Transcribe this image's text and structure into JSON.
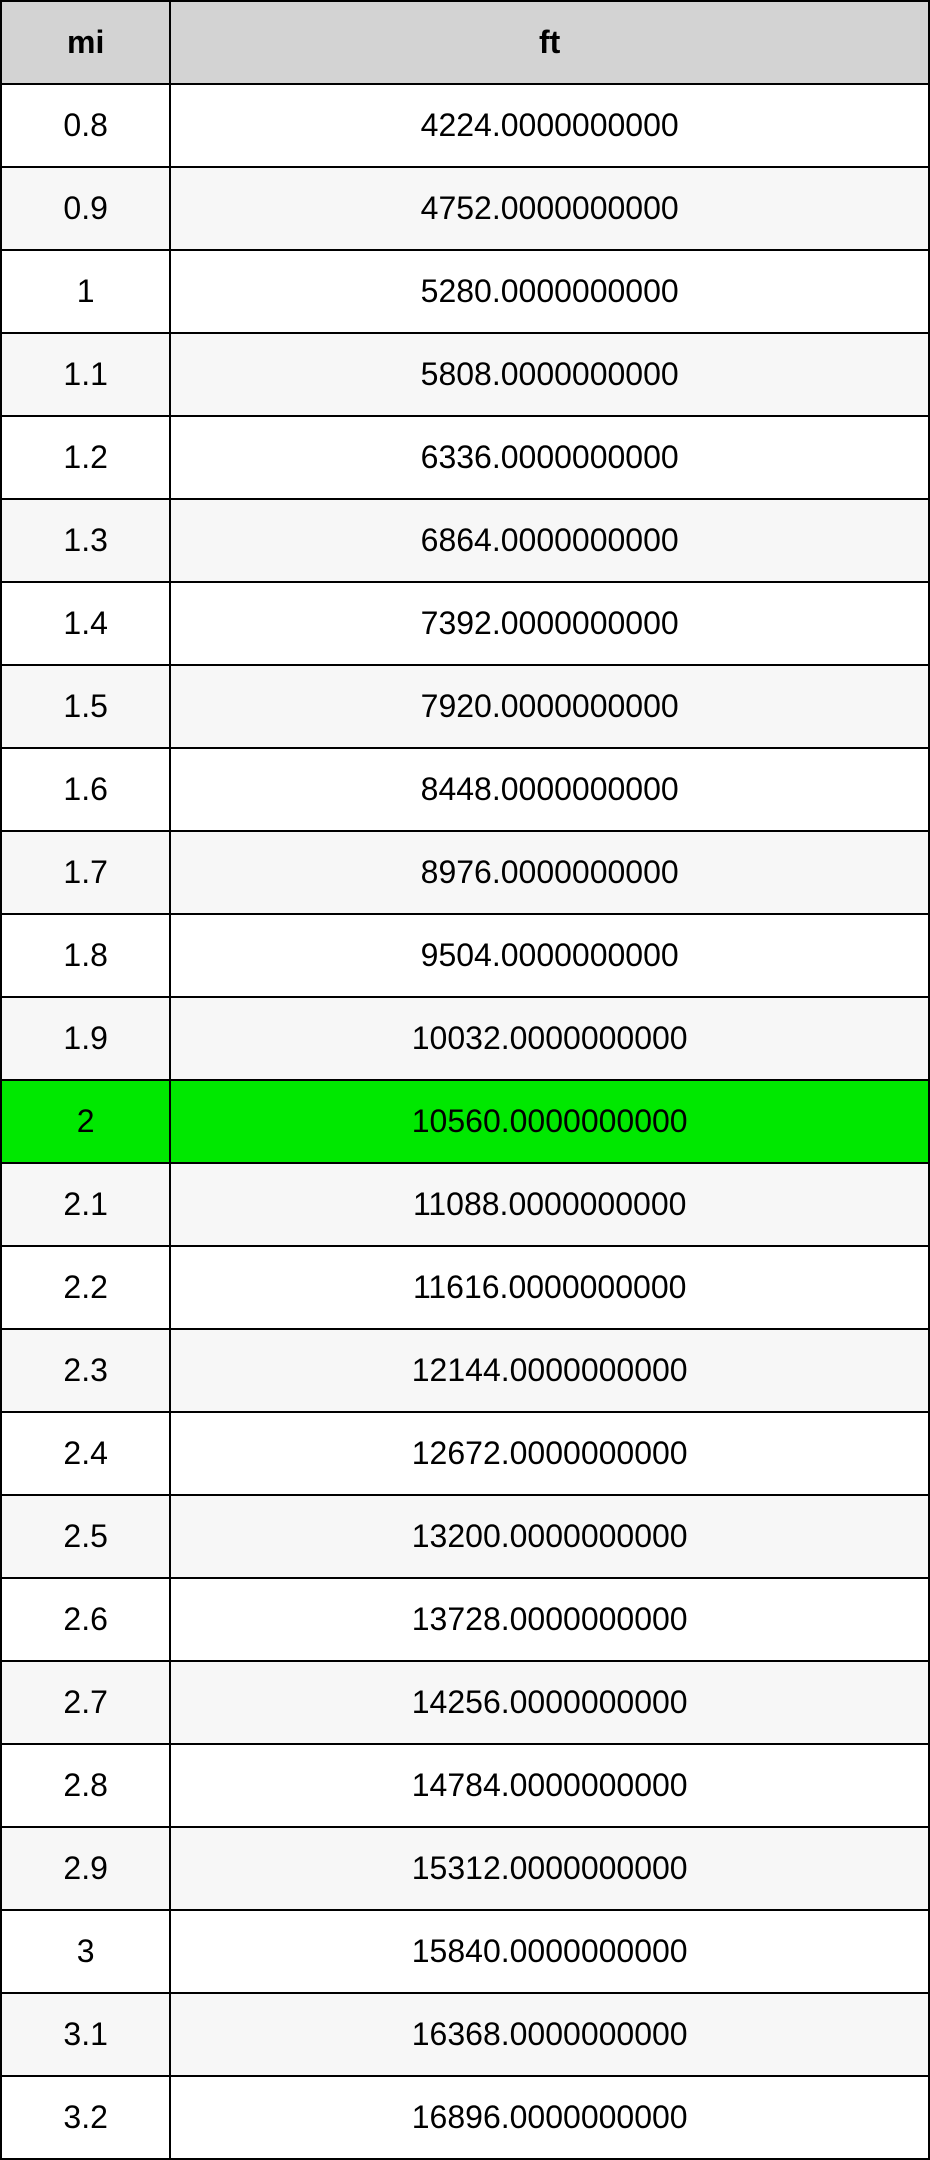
{
  "table": {
    "type": "table",
    "columns": [
      "mi",
      "ft"
    ],
    "header_bg": "#d3d3d3",
    "border_color": "#000000",
    "text_color": "#000000",
    "odd_row_bg": "#ffffff",
    "even_row_bg": "#f7f7f7",
    "highlight_bg": "#00e800",
    "font_size": 32,
    "rows": [
      {
        "mi": "0.8",
        "ft": "4224.0000000000",
        "highlight": false
      },
      {
        "mi": "0.9",
        "ft": "4752.0000000000",
        "highlight": false
      },
      {
        "mi": "1",
        "ft": "5280.0000000000",
        "highlight": false
      },
      {
        "mi": "1.1",
        "ft": "5808.0000000000",
        "highlight": false
      },
      {
        "mi": "1.2",
        "ft": "6336.0000000000",
        "highlight": false
      },
      {
        "mi": "1.3",
        "ft": "6864.0000000000",
        "highlight": false
      },
      {
        "mi": "1.4",
        "ft": "7392.0000000000",
        "highlight": false
      },
      {
        "mi": "1.5",
        "ft": "7920.0000000000",
        "highlight": false
      },
      {
        "mi": "1.6",
        "ft": "8448.0000000000",
        "highlight": false
      },
      {
        "mi": "1.7",
        "ft": "8976.0000000000",
        "highlight": false
      },
      {
        "mi": "1.8",
        "ft": "9504.0000000000",
        "highlight": false
      },
      {
        "mi": "1.9",
        "ft": "10032.0000000000",
        "highlight": false
      },
      {
        "mi": "2",
        "ft": "10560.0000000000",
        "highlight": true
      },
      {
        "mi": "2.1",
        "ft": "11088.0000000000",
        "highlight": false
      },
      {
        "mi": "2.2",
        "ft": "11616.0000000000",
        "highlight": false
      },
      {
        "mi": "2.3",
        "ft": "12144.0000000000",
        "highlight": false
      },
      {
        "mi": "2.4",
        "ft": "12672.0000000000",
        "highlight": false
      },
      {
        "mi": "2.5",
        "ft": "13200.0000000000",
        "highlight": false
      },
      {
        "mi": "2.6",
        "ft": "13728.0000000000",
        "highlight": false
      },
      {
        "mi": "2.7",
        "ft": "14256.0000000000",
        "highlight": false
      },
      {
        "mi": "2.8",
        "ft": "14784.0000000000",
        "highlight": false
      },
      {
        "mi": "2.9",
        "ft": "15312.0000000000",
        "highlight": false
      },
      {
        "mi": "3",
        "ft": "15840.0000000000",
        "highlight": false
      },
      {
        "mi": "3.1",
        "ft": "16368.0000000000",
        "highlight": false
      },
      {
        "mi": "3.2",
        "ft": "16896.0000000000",
        "highlight": false
      }
    ]
  }
}
